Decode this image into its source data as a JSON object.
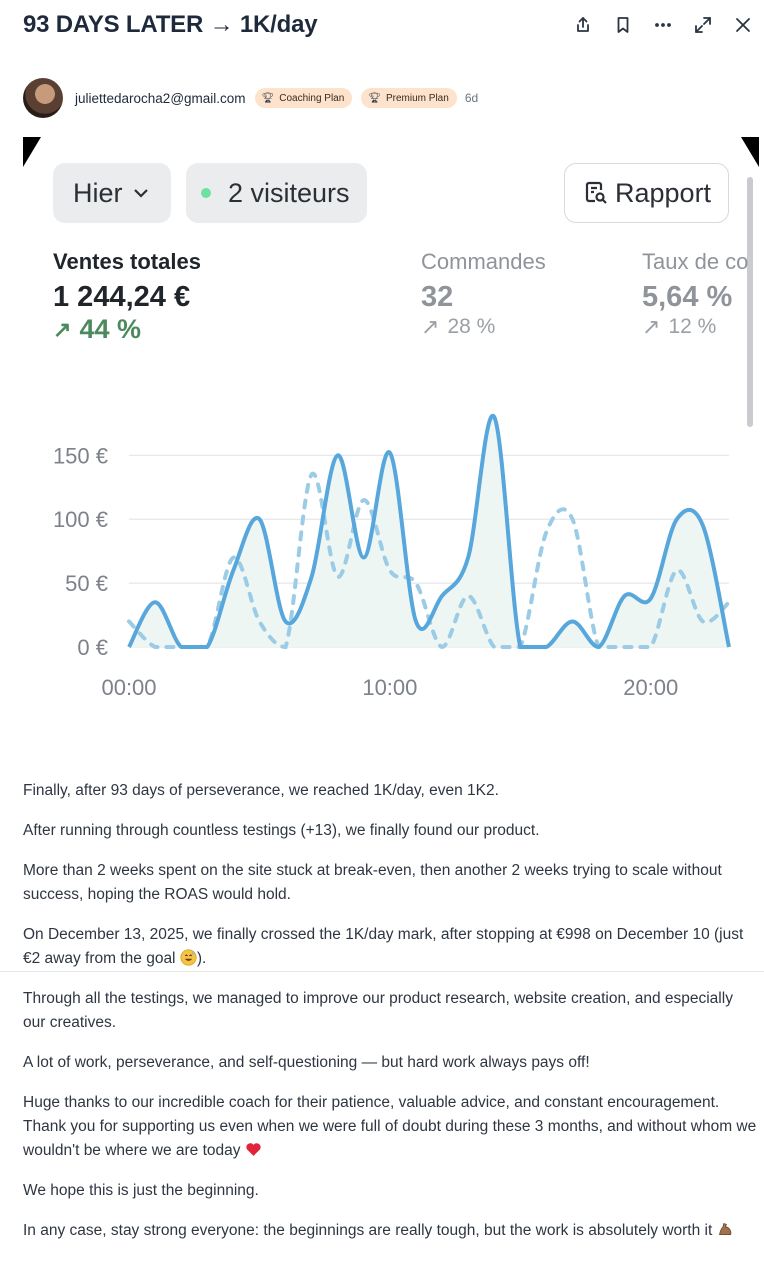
{
  "header": {
    "title": "93 DAYS LATER → 1K/day",
    "icons": [
      "share-icon",
      "bookmark-icon",
      "more-icon",
      "expand-icon",
      "close-icon"
    ]
  },
  "author": {
    "email": "juliettedarocha2@gmail.com",
    "badges": [
      "Coaching Plan",
      "Premium Plan"
    ],
    "age": "6d"
  },
  "dashboard": {
    "date_selector": "Hier",
    "visitors": "2 visiteurs",
    "report_button": "Rapport",
    "metrics": [
      {
        "label": "Ventes totales",
        "value": "1 244,24 €",
        "change": "44 %"
      },
      {
        "label": "Commandes",
        "value": "32",
        "change": "28 %"
      },
      {
        "label": "Taux de co",
        "value": "5,64 %",
        "change": "12 %"
      }
    ]
  },
  "chart_data": {
    "type": "line",
    "x": [
      0,
      1,
      2,
      3,
      4,
      5,
      6,
      7,
      8,
      9,
      10,
      11,
      12,
      13,
      14,
      15,
      16,
      17,
      18,
      19,
      20,
      21,
      22,
      23
    ],
    "x_tick_labels": [
      "00:00",
      "10:00",
      "20:00"
    ],
    "y_tick_labels": [
      "150 €",
      "100 €",
      "50 €",
      "0 €"
    ],
    "ylim": [
      0,
      180
    ],
    "series": [
      {
        "style": "solid",
        "color": "#57a6dc",
        "values": [
          0,
          35,
          0,
          0,
          60,
          100,
          20,
          55,
          150,
          70,
          152,
          20,
          40,
          70,
          180,
          0,
          0,
          20,
          0,
          40,
          38,
          100,
          95,
          0
        ]
      },
      {
        "style": "dashed",
        "color": "#9ccbe6",
        "values": [
          20,
          0,
          0,
          0,
          70,
          20,
          0,
          135,
          55,
          115,
          60,
          50,
          0,
          40,
          0,
          0,
          90,
          100,
          0,
          0,
          0,
          60,
          20,
          35
        ]
      }
    ],
    "grid": true
  },
  "post": {
    "paragraphs": [
      "Finally, after 93 days of perseverance, we reached 1K/day, even 1K2.",
      "After running through countless testings (+13), we finally found our product.",
      "More than 2 weeks spent on the site stuck at break-even, then another 2 weeks trying to scale without success, hoping the ROAS would hold.",
      "On December 13, 2025, we finally crossed the 1K/day mark, after stopping at €998 on December 10 (just €2 away from the goal",
      "Through all the testings, we managed to improve our product research, website creation, and especially our creatives.",
      "A lot of work, perseverance, and self-questioning — but hard work always pays off!",
      "Huge thanks to our incredible coach for their patience, valuable advice, and constant encouragement. Thank you for supporting us even when we were full of doubt during these 3 months, and without whom we wouldn't be where we are today",
      "We hope this is just the beginning.",
      "In any case, stay strong everyone: the beginnings are really tough, but the work is absolutely worth it"
    ],
    "p4_suffix": ").",
    "emojis": [
      "grinning-sweat-emoji",
      "red-heart-emoji",
      "flexed-biceps-emoji"
    ]
  }
}
